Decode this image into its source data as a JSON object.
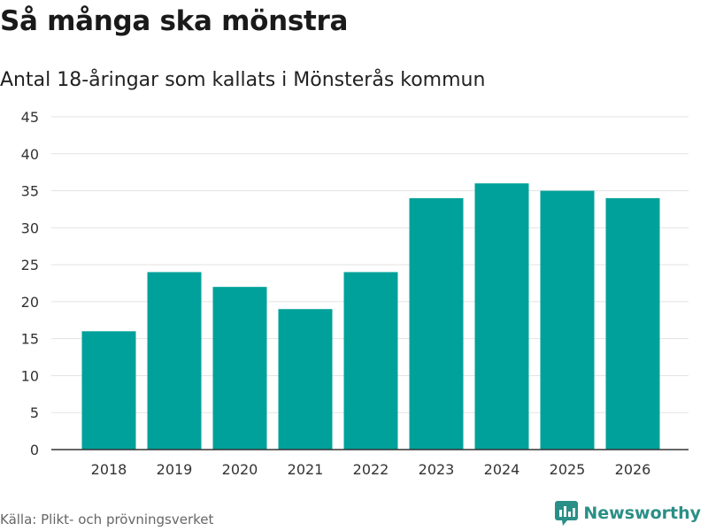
{
  "title": "Så många ska mönstra",
  "subtitle": "Antal 18-åringar som kallats i Mönsterås kommun",
  "source": "Källa: Plikt- och prövningsverket",
  "brand": "Newsworthy",
  "colors": {
    "bar": "#00a19a",
    "grid": "#e3e3e3",
    "axis": "#333333",
    "brand": "#2a8f86"
  },
  "chart_data": {
    "type": "bar",
    "title": "Så många ska mönstra",
    "subtitle": "Antal 18-åringar som kallats i Mönsterås kommun",
    "xlabel": "",
    "ylabel": "",
    "categories": [
      "2018",
      "2019",
      "2020",
      "2021",
      "2022",
      "2023",
      "2024",
      "2025",
      "2026"
    ],
    "values": [
      16,
      24,
      22,
      19,
      24,
      34,
      36,
      35,
      34
    ],
    "ylim": [
      0,
      45
    ],
    "yticks": [
      0,
      5,
      10,
      15,
      20,
      25,
      30,
      35,
      40,
      45
    ],
    "grid": true,
    "legend": "none"
  }
}
